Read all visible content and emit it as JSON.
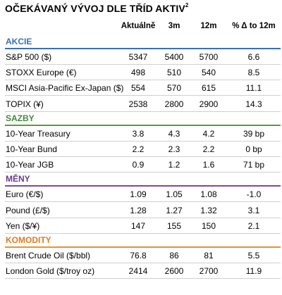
{
  "title": "OČEKÁVANÝ VÝVOJ DLE TŘÍD AKTIV",
  "title_sup": "2",
  "columns": [
    "Aktuálně",
    "3m",
    "12m",
    "% Δ to 12m"
  ],
  "sections": [
    {
      "label": "AKCIE",
      "color": "#3a6fb5",
      "line_color": "#3a6fb5",
      "rows": [
        {
          "name": "S&P 500 ($)",
          "values": [
            "5347",
            "5400",
            "5700",
            "6.6"
          ]
        },
        {
          "name": "STOXX Europe (€)",
          "values": [
            "498",
            "510",
            "540",
            "8.5"
          ]
        },
        {
          "name": "MSCI Asia-Pacific Ex-Japan ($)",
          "values": [
            "554",
            "570",
            "615",
            "11.1"
          ]
        },
        {
          "name": "TOPIX (¥)",
          "values": [
            "2538",
            "2800",
            "2900",
            "14.3"
          ]
        }
      ]
    },
    {
      "label": "SAZBY",
      "color": "#3f8a3a",
      "line_color": "#5a9b3c",
      "rows": [
        {
          "name": "10-Year Treasury",
          "values": [
            "3.8",
            "4.3",
            "4.2",
            "39 bp"
          ]
        },
        {
          "name": "10-Year Bund",
          "values": [
            "2.2",
            "2.3",
            "2.2",
            "0 bp"
          ]
        },
        {
          "name": "10-Year JGB",
          "values": [
            "0.9",
            "1.2",
            "1.6",
            "71 bp"
          ]
        }
      ]
    },
    {
      "label": "MĚNY",
      "color": "#6b3a8c",
      "line_color": "#7b4a9c",
      "rows": [
        {
          "name": "Euro (€/$)",
          "values": [
            "1.09",
            "1.05",
            "1.08",
            "-1.0"
          ]
        },
        {
          "name": "Pound (£/$)",
          "values": [
            "1.28",
            "1.27",
            "1.32",
            "3.1"
          ]
        },
        {
          "name": "Yen ($/¥)",
          "values": [
            "147",
            "155",
            "150",
            "2.1"
          ]
        }
      ]
    },
    {
      "label": "KOMODITY",
      "color": "#e07b1c",
      "line_color": "#e8922f",
      "rows": [
        {
          "name": "Brent Crude Oil ($/bbl)",
          "values": [
            "76.8",
            "86",
            "81",
            "5.5"
          ]
        },
        {
          "name": "London Gold ($/troy oz)",
          "values": [
            "2414",
            "2600",
            "2700",
            "11.9"
          ]
        }
      ]
    }
  ]
}
